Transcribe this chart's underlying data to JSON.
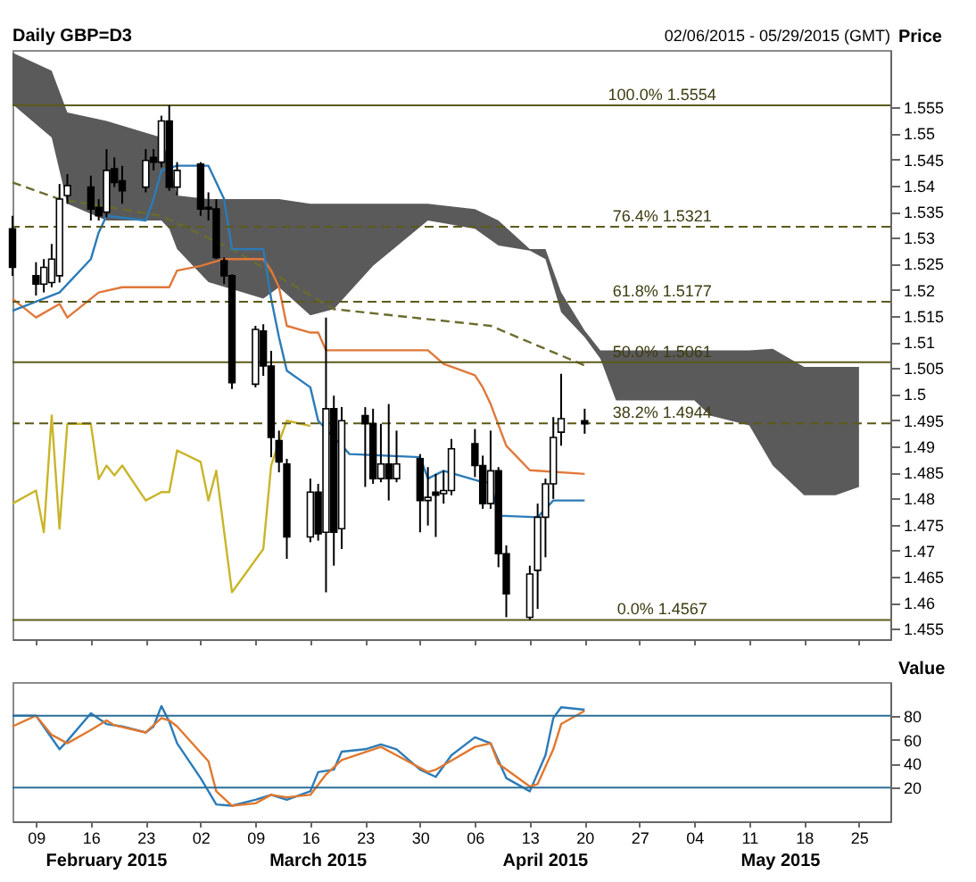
{
  "chart_data": [
    {
      "type": "candlestick",
      "title": "Daily GBP=D3",
      "subtitle": "02/06/2015 - 05/29/2015 (GMT)",
      "ylabel": "Price",
      "tick_labels": "y",
      "xlim": [
        "2015-02-06",
        "2015-05-29"
      ],
      "ylim": [
        1.453,
        1.566
      ],
      "xticks": [
        {
          "value": "2015-02-09",
          "label": null
        },
        {
          "value": "2015-02-16",
          "label": null
        },
        {
          "value": "2015-02-23",
          "label": null
        },
        {
          "value": "2015-03-02",
          "label": null
        },
        {
          "value": "2015-03-09",
          "label": null
        },
        {
          "value": "2015-03-16",
          "label": null
        },
        {
          "value": "2015-03-23",
          "label": null
        },
        {
          "value": "2015-03-30",
          "label": null
        },
        {
          "value": "2015-04-06",
          "label": null
        },
        {
          "value": "2015-04-13",
          "label": null
        },
        {
          "value": "2015-04-20",
          "label": null
        },
        {
          "value": "2015-04-27",
          "label": null
        },
        {
          "value": "2015-05-04",
          "label": null
        },
        {
          "value": "2015-05-11",
          "label": null
        },
        {
          "value": "2015-05-18",
          "label": null
        },
        {
          "value": "2015-05-25",
          "label": null
        }
      ],
      "yticks": [
        1.455,
        1.46,
        1.465,
        1.47,
        1.475,
        1.48,
        1.485,
        1.49,
        1.495,
        1.5,
        1.505,
        1.51,
        1.515,
        1.52,
        1.525,
        1.53,
        1.535,
        1.54,
        1.545,
        1.55,
        1.555
      ],
      "x": [
        "2015-02-06",
        "2015-02-09",
        "2015-02-10",
        "2015-02-11",
        "2015-02-12",
        "2015-02-13",
        "2015-02-16",
        "2015-02-17",
        "2015-02-18",
        "2015-02-19",
        "2015-02-20",
        "2015-02-23",
        "2015-02-24",
        "2015-02-25",
        "2015-02-26",
        "2015-02-27",
        "2015-03-02",
        "2015-03-03",
        "2015-03-04",
        "2015-03-05",
        "2015-03-06",
        "2015-03-09",
        "2015-03-10",
        "2015-03-11",
        "2015-03-12",
        "2015-03-13",
        "2015-03-16",
        "2015-03-17",
        "2015-03-18",
        "2015-03-19",
        "2015-03-20",
        "2015-03-23",
        "2015-03-24",
        "2015-03-25",
        "2015-03-26",
        "2015-03-27",
        "2015-03-30",
        "2015-03-31",
        "2015-04-01",
        "2015-04-02",
        "2015-04-03",
        "2015-04-06",
        "2015-04-07",
        "2015-04-08",
        "2015-04-09",
        "2015-04-10",
        "2015-04-13",
        "2015-04-14",
        "2015-04-15",
        "2015-04-16",
        "2015-04-17",
        "2015-04-20"
      ],
      "ohlc": [
        [
          1.5317,
          1.5342,
          1.5227,
          1.5243
        ],
        [
          1.5227,
          1.5253,
          1.5189,
          1.5211
        ],
        [
          1.5211,
          1.5259,
          1.5195,
          1.5243
        ],
        [
          1.5214,
          1.5288,
          1.5205,
          1.5259
        ],
        [
          1.5227,
          1.5403,
          1.5214,
          1.5374
        ],
        [
          1.5381,
          1.5422,
          1.5365,
          1.54
        ],
        [
          1.5397,
          1.5419,
          1.5333,
          1.5355
        ],
        [
          1.5358,
          1.5374,
          1.5333,
          1.5342
        ],
        [
          1.5349,
          1.547,
          1.5339,
          1.5429
        ],
        [
          1.5432,
          1.5454,
          1.5397,
          1.5406
        ],
        [
          1.5409,
          1.5438,
          1.5365,
          1.539
        ],
        [
          1.5397,
          1.547,
          1.5387,
          1.5448
        ],
        [
          1.5454,
          1.547,
          1.5429,
          1.5445
        ],
        [
          1.5445,
          1.5534,
          1.5435,
          1.5524
        ],
        [
          1.5524,
          1.5554,
          1.539,
          1.5397
        ],
        [
          1.5397,
          1.5445,
          1.5381,
          1.5429
        ],
        [
          1.5441,
          1.5445,
          1.5342,
          1.5355
        ],
        [
          1.5358,
          1.5387,
          1.5333,
          1.5355
        ],
        [
          1.5355,
          1.5374,
          1.5259,
          1.5262
        ],
        [
          1.5256,
          1.5262,
          1.5211,
          1.5227
        ],
        [
          1.5227,
          1.523,
          1.501,
          1.5022
        ],
        [
          1.5019,
          1.5131,
          1.5013,
          1.5124
        ],
        [
          1.5121,
          1.5134,
          1.5035,
          1.5054
        ],
        [
          1.5054,
          1.5083,
          1.4879,
          1.4917
        ],
        [
          1.4911,
          1.493,
          1.485,
          1.487
        ],
        [
          1.4866,
          1.4876,
          1.4684,
          1.4726
        ],
        [
          1.4726,
          1.4838,
          1.4716,
          1.4812
        ],
        [
          1.4812,
          1.4828,
          1.4719,
          1.4732
        ],
        [
          1.4735,
          1.5147,
          1.462,
          1.4972
        ],
        [
          1.4972,
          1.4997,
          1.4671,
          1.4735
        ],
        [
          1.4742,
          1.4975,
          1.4703,
          1.4949
        ],
        [
          1.4959,
          1.4975,
          1.4822,
          1.4943
        ],
        [
          1.4943,
          1.4972,
          1.4828,
          1.4838
        ],
        [
          1.4838,
          1.4943,
          1.4831,
          1.4866
        ],
        [
          1.4866,
          1.4981,
          1.4796,
          1.4838
        ],
        [
          1.4838,
          1.493,
          1.4831,
          1.4866
        ],
        [
          1.4876,
          1.4885,
          1.4735,
          1.4796
        ],
        [
          1.4796,
          1.486,
          1.4748,
          1.4802
        ],
        [
          1.4812,
          1.4847,
          1.4726,
          1.4806
        ],
        [
          1.4809,
          1.4853,
          1.479,
          1.4815
        ],
        [
          1.4815,
          1.4914,
          1.4806,
          1.4895
        ],
        [
          1.4905,
          1.4933,
          1.4841,
          1.4863
        ],
        [
          1.4863,
          1.4882,
          1.478,
          1.479
        ],
        [
          1.479,
          1.493,
          1.478,
          1.4853
        ],
        [
          1.4853,
          1.486,
          1.4668,
          1.4694
        ],
        [
          1.4694,
          1.471,
          1.4572,
          1.4617
        ],
        [
          1.4572,
          1.4671,
          1.4567,
          1.4655
        ],
        [
          1.4662,
          1.479,
          1.4588,
          1.4764
        ],
        [
          1.4764,
          1.4838,
          1.4687,
          1.4828
        ],
        [
          1.4828,
          1.4956,
          1.4799,
          1.4917
        ],
        [
          1.4927,
          1.5039,
          1.4901,
          1.4953
        ],
        [
          1.4949,
          1.4972,
          1.4924,
          1.4943
        ]
      ],
      "series": [
        {
          "type": "line",
          "color": "#5a5a5a",
          "x": [
            "2015-02-06",
            "2015-02-11",
            "2015-02-13",
            "2015-02-18",
            "2015-02-25",
            "2015-02-26",
            "2015-02-27",
            "2015-03-03",
            "2015-03-10",
            "2015-03-12",
            "2015-03-16",
            "2015-03-19",
            "2015-03-24",
            "2015-03-31",
            "2015-04-06",
            "2015-04-09",
            "2015-04-13",
            "2015-04-15",
            "2015-04-17",
            "2015-04-20",
            "2015-04-22",
            "2015-04-24",
            "2015-05-04",
            "2015-05-06",
            "2015-05-11",
            "2015-05-14",
            "2015-05-18",
            "2015-05-22",
            "2015-05-25"
          ],
          "values": [
            null,
            null,
            null,
            null,
            null,
            null,
            null,
            null,
            null,
            null,
            null,
            null,
            null,
            null,
            null,
            null,
            null,
            null,
            null,
            null,
            null,
            null,
            null,
            null,
            null,
            null,
            null,
            null,
            null
          ],
          "upper": [
            1.5655,
            1.562,
            1.554,
            1.5524,
            1.5492,
            1.5445,
            1.5381,
            1.5374,
            1.5374,
            1.5374,
            1.5365,
            1.5365,
            1.5365,
            1.5365,
            1.5355,
            1.5333,
            1.5278,
            1.5278,
            1.5195,
            1.5122,
            1.5084,
            1.5084,
            1.5084,
            1.5084,
            1.5084,
            1.5087,
            1.5052,
            1.5052,
            1.5052
          ],
          "lower": [
            1.5556,
            1.5492,
            1.5365,
            1.5333,
            1.5333,
            1.5317,
            1.5278,
            1.5215,
            1.5183,
            1.5205,
            1.5151,
            1.5163,
            1.5246,
            1.5333,
            1.5317,
            1.5285,
            1.5275,
            1.5259,
            1.5157,
            1.5109,
            1.5068,
            1.4988,
            1.4988,
            1.4959,
            1.494,
            1.4863,
            1.4806,
            1.4806,
            1.4822
          ]
        },
        {
          "type": "line",
          "color": "#6b6b2f",
          "line_style": "dashed",
          "x": [
            "2015-02-06",
            "2015-02-12",
            "2015-02-25",
            "2015-03-06",
            "2015-03-19",
            "2015-04-08",
            "2015-04-20"
          ],
          "values": [
            1.5406,
            1.5374,
            1.5342,
            1.5278,
            1.5163,
            1.5131,
            1.5055
          ]
        },
        {
          "type": "line",
          "color": "#e0783a",
          "x": [
            "2015-02-06",
            "2015-02-09",
            "2015-02-12",
            "2015-02-13",
            "2015-02-17",
            "2015-02-20",
            "2015-02-26",
            "2015-02-27",
            "2015-03-02",
            "2015-03-05",
            "2015-03-10",
            "2015-03-11",
            "2015-03-12",
            "2015-03-13",
            "2015-03-16",
            "2015-03-17",
            "2015-03-18",
            "2015-03-31",
            "2015-04-02",
            "2015-04-06",
            "2015-04-07",
            "2015-04-08",
            "2015-04-10",
            "2015-04-13",
            "2015-04-20"
          ],
          "values": [
            1.5183,
            1.5147,
            1.5173,
            1.5147,
            1.5195,
            1.5205,
            1.5205,
            1.5237,
            1.5246,
            1.5259,
            1.5259,
            1.5237,
            1.5205,
            1.5131,
            1.5118,
            1.5118,
            1.5084,
            1.5084,
            1.5058,
            1.5036,
            1.5013,
            1.4981,
            1.4901,
            1.4854,
            1.4847
          ]
        },
        {
          "type": "line",
          "color": "#2b7bb9",
          "x": [
            "2015-02-06",
            "2015-02-12",
            "2015-02-16",
            "2015-02-17",
            "2015-02-18",
            "2015-02-23",
            "2015-02-24",
            "2015-02-25",
            "2015-02-27",
            "2015-03-03",
            "2015-03-05",
            "2015-03-06",
            "2015-03-10",
            "2015-03-11",
            "2015-03-12",
            "2015-03-13",
            "2015-03-16",
            "2015-03-17",
            "2015-03-21",
            "2015-03-30",
            "2015-03-31",
            "2015-04-02",
            "2015-04-07",
            "2015-04-08",
            "2015-04-09",
            "2015-04-14",
            "2015-04-16",
            "2015-04-20"
          ],
          "values": [
            1.516,
            1.5195,
            1.5259,
            1.531,
            1.5342,
            1.5333,
            1.5374,
            1.5429,
            1.5438,
            1.5438,
            1.5374,
            1.5278,
            1.5278,
            1.5183,
            1.5109,
            1.5045,
            1.5013,
            1.4949,
            1.4885,
            1.4879,
            1.4838,
            1.4853,
            1.4831,
            1.4831,
            1.4767,
            1.4764,
            1.4796,
            1.4796
          ]
        },
        {
          "type": "line",
          "color": "#c9b52a",
          "x": [
            "2015-02-06",
            "2015-02-09",
            "2015-02-10",
            "2015-02-11",
            "2015-02-12",
            "2015-02-13",
            "2015-02-16",
            "2015-02-17",
            "2015-02-18",
            "2015-02-19",
            "2015-02-20",
            "2015-02-23",
            "2015-02-25",
            "2015-02-26",
            "2015-02-27",
            "2015-03-02",
            "2015-03-03",
            "2015-03-04",
            "2015-03-06",
            "2015-03-10",
            "2015-03-11",
            "2015-03-12",
            "2015-03-13",
            "2015-03-16"
          ],
          "values": [
            1.479,
            1.4815,
            1.4735,
            1.4959,
            1.4742,
            1.4943,
            1.4943,
            1.4837,
            1.4863,
            1.4844,
            1.4863,
            1.4796,
            1.4812,
            1.4812,
            1.4892,
            1.487,
            1.4796,
            1.4853,
            1.462,
            1.4703,
            1.4863,
            1.4908,
            1.4949,
            1.4939
          ]
        }
      ],
      "ref_lines": [
        {
          "axis": "y",
          "value": 1.5554,
          "label": "100.0%  1.5554",
          "color": "#5c5a1a",
          "line_style": "solid"
        },
        {
          "axis": "y",
          "value": 1.5321,
          "label": "76.4%  1.5321",
          "color": "#5c5a1a",
          "line_style": "dashed"
        },
        {
          "axis": "y",
          "value": 1.5177,
          "label": "61.8%  1.5177",
          "color": "#5c5a1a",
          "line_style": "dashed"
        },
        {
          "axis": "y",
          "value": 1.5061,
          "label": "50.0%  1.5061",
          "color": "#5c5a1a",
          "line_style": "solid"
        },
        {
          "axis": "y",
          "value": 1.4944,
          "label": "38.2%  1.4944",
          "color": "#5c5a1a",
          "line_style": "dashed"
        },
        {
          "axis": "y",
          "value": 1.4567,
          "label": "0.0%  1.4567",
          "color": "#5c5a1a",
          "line_style": "solid"
        }
      ]
    },
    {
      "type": "line",
      "ylabel": "Value",
      "xlim": [
        "2015-02-06",
        "2015-05-29"
      ],
      "ylim": [
        -8,
        108
      ],
      "yticks": [
        20,
        40,
        60,
        80
      ],
      "xticks": [
        {
          "value": "2015-02-09",
          "label": "09"
        },
        {
          "value": "2015-02-16",
          "label": "16"
        },
        {
          "value": "2015-02-23",
          "label": "23"
        },
        {
          "value": "2015-03-02",
          "label": "02"
        },
        {
          "value": "2015-03-09",
          "label": "09"
        },
        {
          "value": "2015-03-16",
          "label": "16"
        },
        {
          "value": "2015-03-23",
          "label": "23"
        },
        {
          "value": "2015-03-30",
          "label": "30"
        },
        {
          "value": "2015-04-06",
          "label": "06"
        },
        {
          "value": "2015-04-13",
          "label": "13"
        },
        {
          "value": "2015-04-20",
          "label": "20"
        },
        {
          "value": "2015-04-27",
          "label": "27"
        },
        {
          "value": "2015-05-04",
          "label": "04"
        },
        {
          "value": "2015-05-11",
          "label": "11"
        },
        {
          "value": "2015-05-18",
          "label": "18"
        },
        {
          "value": "2015-05-25",
          "label": "25"
        }
      ],
      "x2lim": [
        "2015-02-06",
        "2015-05-29"
      ],
      "x2ticks": [
        {
          "value": "2015-02-18",
          "label": "February 2015"
        },
        {
          "value": "2015-03-17",
          "label": "March 2015"
        },
        {
          "value": "2015-04-15",
          "label": "April 2015"
        },
        {
          "value": "2015-05-15",
          "label": "May 2015"
        }
      ],
      "series": [
        {
          "color": "#2b7bb9",
          "x": [
            "2015-02-06",
            "2015-02-09",
            "2015-02-12",
            "2015-02-13",
            "2015-02-16",
            "2015-02-18",
            "2015-02-20",
            "2015-02-23",
            "2015-02-24",
            "2015-02-25",
            "2015-02-26",
            "2015-02-27",
            "2015-03-02",
            "2015-03-04",
            "2015-03-06",
            "2015-03-09",
            "2015-03-11",
            "2015-03-13",
            "2015-03-16",
            "2015-03-17",
            "2015-03-19",
            "2015-03-20",
            "2015-03-23",
            "2015-03-25",
            "2015-03-27",
            "2015-03-30",
            "2015-04-01",
            "2015-04-03",
            "2015-04-06",
            "2015-04-08",
            "2015-04-10",
            "2015-04-13",
            "2015-04-15",
            "2015-04-16",
            "2015-04-17",
            "2015-04-20"
          ],
          "values": [
            80,
            80,
            52,
            59,
            82,
            73,
            71,
            66,
            71,
            88,
            75,
            57,
            28,
            6,
            5,
            10,
            14,
            10,
            17,
            33,
            35,
            50,
            52,
            56,
            52,
            35,
            29,
            47,
            62,
            57,
            28,
            17,
            47,
            78,
            87,
            85
          ]
        },
        {
          "color": "#e0782e",
          "x": [
            "2015-02-06",
            "2015-02-09",
            "2015-02-11",
            "2015-02-13",
            "2015-02-16",
            "2015-02-18",
            "2015-02-19",
            "2015-02-23",
            "2015-02-25",
            "2015-02-26",
            "2015-02-27",
            "2015-03-03",
            "2015-03-04",
            "2015-03-06",
            "2015-03-09",
            "2015-03-11",
            "2015-03-13",
            "2015-03-16",
            "2015-03-18",
            "2015-03-20",
            "2015-03-25",
            "2015-03-27",
            "2015-03-31",
            "2015-04-01",
            "2015-04-06",
            "2015-04-08",
            "2015-04-09",
            "2015-04-13",
            "2015-04-14",
            "2015-04-16",
            "2015-04-17",
            "2015-04-20"
          ],
          "values": [
            71,
            80,
            64,
            57,
            68,
            76,
            72,
            66,
            78,
            76,
            71,
            42,
            17,
            5,
            7,
            14,
            12,
            14,
            31,
            43,
            54,
            47,
            33,
            35,
            54,
            57,
            40,
            21,
            23,
            52,
            73,
            84
          ]
        }
      ],
      "ref_lines": [
        {
          "axis": "y",
          "value": 80,
          "color": "#2a6f97",
          "line_style": "solid"
        },
        {
          "axis": "y",
          "value": 20,
          "color": "#2a6f97",
          "line_style": "solid"
        }
      ]
    }
  ]
}
